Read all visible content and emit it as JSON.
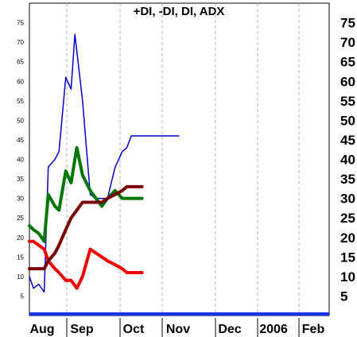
{
  "chart_data": {
    "type": "line",
    "title": "+DI, -DI, DI, ADX",
    "x_labels": [
      "Aug",
      "Sep",
      "Oct",
      "Nov",
      "Dec",
      "2006",
      "Feb"
    ],
    "y_ticks_left": [
      5,
      10,
      15,
      20,
      25,
      30,
      35,
      40,
      45,
      50,
      55,
      60,
      65,
      70,
      75
    ],
    "y_ticks_right": [
      5,
      10,
      15,
      20,
      25,
      30,
      35,
      40,
      45,
      50,
      55,
      60,
      65,
      70,
      75
    ],
    "ylim": [
      0,
      80
    ],
    "grid": true,
    "series": [
      {
        "color": "#0000cc",
        "line_width": 1.5,
        "x": [
          0,
          0.3,
          0.7,
          1.1,
          1.4,
          1.9,
          2.2,
          2.7,
          3.0,
          3.2,
          3.6,
          4.0,
          4.3,
          4.6,
          4.9,
          5.3,
          5.7,
          6.0,
          6.3,
          6.7,
          7.0,
          7.3,
          7.7,
          8.0,
          8.4,
          8.9,
          9.2
        ],
        "y": [
          10,
          7,
          8,
          6,
          38,
          40,
          42,
          61,
          58,
          72,
          55,
          31,
          30,
          30,
          30,
          38,
          42,
          43,
          46,
          46,
          46,
          46,
          46,
          46,
          46,
          46,
          46
        ]
      },
      {
        "color": "#007700",
        "line_width": 4,
        "x": [
          0,
          0.3,
          0.7,
          1.1,
          1.4,
          1.9,
          2.2,
          2.7,
          3.0,
          3.3,
          3.6,
          4.0,
          4.3,
          4.6,
          4.9,
          5.3,
          5.7,
          6.0,
          6.3,
          6.7,
          7.0
        ],
        "y": [
          23,
          22,
          21,
          19,
          31,
          28,
          27,
          37,
          34,
          43,
          36,
          32,
          30,
          28,
          30,
          32,
          30,
          30,
          30,
          30,
          30
        ]
      },
      {
        "color": "#ee0000",
        "line_width": 4,
        "x": [
          0,
          0.3,
          0.7,
          1.1,
          1.4,
          1.9,
          2.2,
          2.7,
          3.0,
          3.3,
          3.6,
          4.0,
          4.3,
          4.6,
          4.9,
          5.3,
          5.7,
          6.0,
          6.3,
          6.7,
          7.0
        ],
        "y": [
          19,
          19,
          18,
          17,
          14,
          12,
          11,
          9,
          9,
          7,
          10,
          17,
          16,
          15,
          14,
          13,
          12,
          11,
          11,
          11,
          11
        ]
      },
      {
        "color": "#7a0000",
        "line_width": 4,
        "x": [
          0,
          0.3,
          0.7,
          1.1,
          1.4,
          1.9,
          2.2,
          2.7,
          3.0,
          3.3,
          3.6,
          4.0,
          4.3,
          4.6,
          4.9,
          5.3,
          5.7,
          6.0,
          6.3,
          6.7,
          7.0
        ],
        "y": [
          12,
          12,
          12,
          12,
          14,
          16,
          18,
          22,
          25,
          27,
          29,
          29,
          29,
          29,
          30,
          31,
          32,
          33,
          33,
          33,
          33
        ]
      }
    ]
  }
}
